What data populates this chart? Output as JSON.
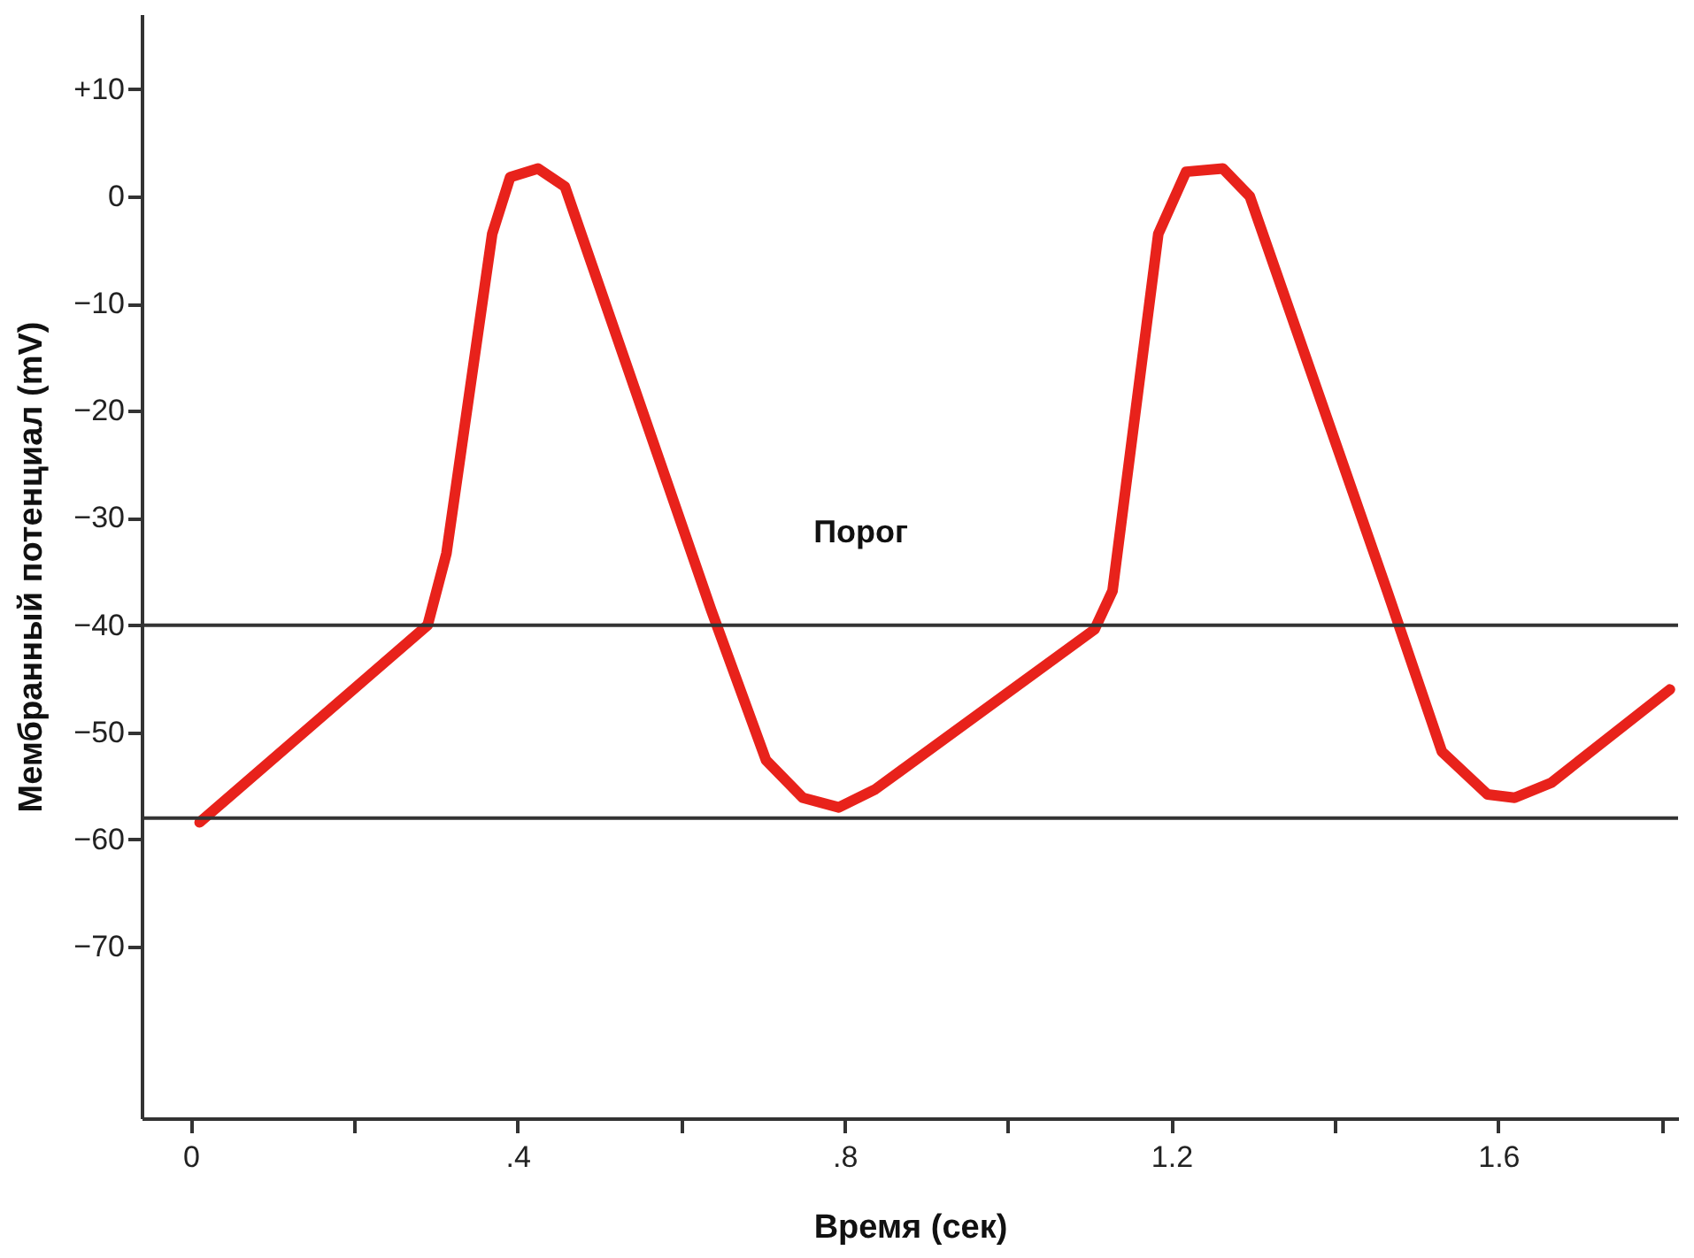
{
  "chart_data": {
    "type": "line",
    "xlabel": "Время (сек)",
    "ylabel": "Мембранный потенциал (mV)",
    "x": [
      0.011,
      0.29,
      0.313,
      0.369,
      0.391,
      0.425,
      0.458,
      0.637,
      0.704,
      0.749,
      0.793,
      0.838,
      1.106,
      1.128,
      1.184,
      1.218,
      1.263,
      1.296,
      1.464,
      1.531,
      1.587,
      1.62,
      1.665,
      1.81
    ],
    "series": [
      {
        "color": "#e8221b",
        "values": [
          -58.4,
          -40,
          -33.3,
          -3.5,
          1.8,
          2.6,
          0.9,
          -38.6,
          -52.6,
          -56.1,
          -57,
          -55.3,
          -40.4,
          -36.8,
          -3.5,
          2.3,
          2.6,
          0,
          -36.8,
          -51.8,
          -55.8,
          -56.1,
          -54.7,
          -46
        ]
      }
    ],
    "xlim": [
      -0.06,
      1.82
    ],
    "ylim": [
      -86,
      17
    ],
    "xticks": [
      0,
      {
        "value": 0.2,
        "label": null
      },
      {
        "value": 0.4,
        "label": ".4"
      },
      {
        "value": 0.6,
        "label": null
      },
      {
        "value": 0.8,
        "label": ".8"
      },
      {
        "value": 1.0,
        "label": null
      },
      1.2,
      {
        "value": 1.4,
        "label": null
      },
      1.6,
      {
        "value": 1.8,
        "label": null
      }
    ],
    "yticks": [
      {
        "value": 10,
        "label": "+10"
      },
      0,
      {
        "value": -10,
        "label": "−10"
      },
      {
        "value": -20,
        "label": "−20"
      },
      {
        "value": -30,
        "label": "−30"
      },
      {
        "value": -40,
        "label": "−40"
      },
      {
        "value": -50,
        "label": "−50"
      },
      {
        "value": -60,
        "label": "−60"
      },
      {
        "value": -70,
        "label": "−70"
      }
    ],
    "ref_lines": [
      {
        "axis": "y",
        "value": -40,
        "label": "Порог",
        "color": "#333333"
      },
      {
        "axis": "y",
        "value": -58,
        "color": "#333333"
      }
    ],
    "grid": false,
    "marker": "none",
    "line_style": "solid"
  }
}
